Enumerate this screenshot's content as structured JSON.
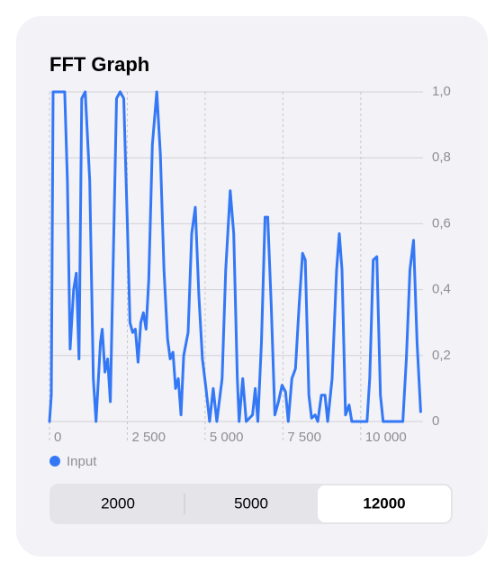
{
  "chart_data": {
    "type": "line",
    "title": "FFT Graph",
    "x": [
      0,
      57,
      115,
      201,
      489,
      575,
      661,
      776,
      862,
      948,
      1034,
      1149,
      1293,
      1408,
      1494,
      1638,
      1695,
      1782,
      1868,
      1954,
      2040,
      2155,
      2270,
      2385,
      2500,
      2586,
      2672,
      2759,
      2845,
      2931,
      3017,
      3103,
      3190,
      3305,
      3448,
      3563,
      3678,
      3793,
      3879,
      3966,
      4052,
      4138,
      4224,
      4310,
      4454,
      4569,
      4684,
      4799,
      4914,
      5029,
      5144,
      5259,
      5374,
      5546,
      5661,
      5805,
      5920,
      6034,
      6092,
      6207,
      6322,
      6523,
      6609,
      6695,
      6810,
      6925,
      7011,
      7126,
      7241,
      7356,
      7471,
      7586,
      7672,
      7787,
      7902,
      8017,
      8132,
      8218,
      8333,
      8420,
      8534,
      8621,
      8736,
      8851,
      8937,
      9080,
      9224,
      9310,
      9397,
      9511,
      9626,
      9713,
      10201,
      10287,
      10402,
      10517,
      10632,
      10718,
      11351,
      11466,
      11580,
      11695,
      11810,
      11925
    ],
    "series": [
      {
        "name": "Input",
        "color": "#3478f6",
        "values": [
          0,
          0.08,
          1.0,
          1.0,
          1.0,
          0.73,
          0.22,
          0.4,
          0.45,
          0.19,
          0.98,
          1.0,
          0.73,
          0.13,
          0,
          0.24,
          0.28,
          0.15,
          0.19,
          0.06,
          0.46,
          0.98,
          1.0,
          0.98,
          0.6,
          0.3,
          0.27,
          0.28,
          0.18,
          0.3,
          0.33,
          0.28,
          0.43,
          0.84,
          1.0,
          0.81,
          0.46,
          0.25,
          0.19,
          0.21,
          0.1,
          0.13,
          0.02,
          0.2,
          0.27,
          0.57,
          0.65,
          0.38,
          0.19,
          0.1,
          0,
          0.1,
          0,
          0.13,
          0.46,
          0.7,
          0.57,
          0.13,
          0,
          0.13,
          0,
          0.02,
          0.1,
          0,
          0.24,
          0.62,
          0.62,
          0.35,
          0.02,
          0.06,
          0.11,
          0.09,
          0,
          0.13,
          0.16,
          0.35,
          0.51,
          0.49,
          0.08,
          0.01,
          0.02,
          0,
          0.08,
          0.08,
          0,
          0.13,
          0.46,
          0.57,
          0.46,
          0.02,
          0.05,
          0,
          0,
          0.13,
          0.49,
          0.5,
          0.08,
          0,
          0,
          0.19,
          0.46,
          0.55,
          0.24,
          0.03
        ]
      }
    ],
    "xlim": [
      0,
      12000
    ],
    "xticks": [
      0,
      {
        "value": 2500,
        "label": "2 500"
      },
      {
        "value": 5000,
        "label": "5 000"
      },
      {
        "value": 7500,
        "label": "7 500"
      },
      {
        "value": 10000,
        "label": "10 000"
      }
    ],
    "ylim": [
      0,
      1
    ],
    "yticks": [
      0,
      {
        "value": 0.2,
        "label": "0,2"
      },
      {
        "value": 0.4,
        "label": "0,4"
      },
      {
        "value": 0.6,
        "label": "0,6"
      },
      {
        "value": 0.8,
        "label": "0,8"
      },
      {
        "value": 1,
        "label": "1,0"
      }
    ],
    "grid": true
  },
  "controls": {
    "options": [
      "2000",
      "5000",
      "12000"
    ],
    "selected": 2
  }
}
